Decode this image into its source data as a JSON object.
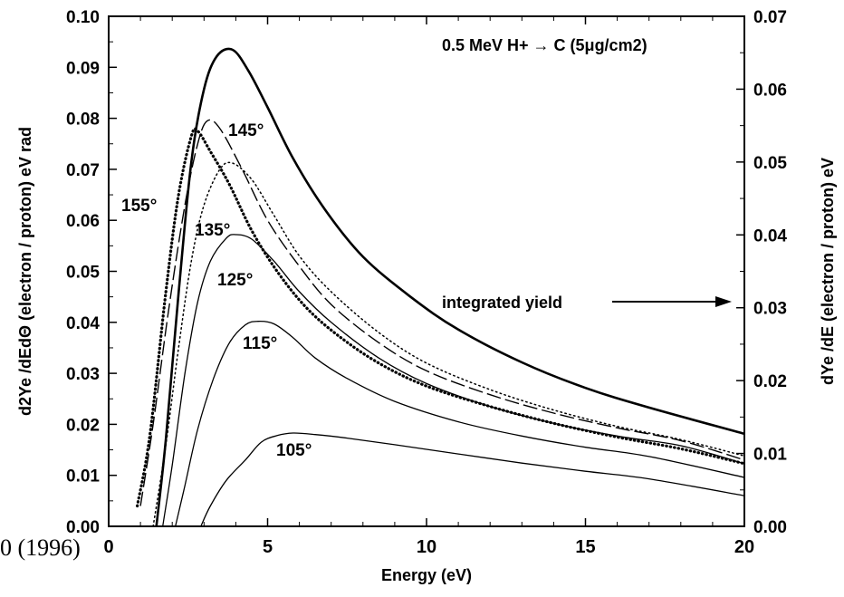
{
  "citation_fragment": "0 (1996)",
  "chart_data": {
    "type": "line",
    "title": "0.5 MeV H+ → C (5μg/cm2)",
    "xlabel": "Energy (eV)",
    "ylabel_left": "d2Ye /dEdΘ (electron / proton) eV rad",
    "ylabel_right": "dYe /dE (electron / proton) eV",
    "xlim": [
      0,
      20
    ],
    "ylim_left": [
      0,
      0.1
    ],
    "ylim_right": [
      0,
      0.07
    ],
    "x_ticks": [
      0,
      5,
      10,
      15,
      20
    ],
    "y_ticks_left": [
      "0.00",
      "0.01",
      "0.02",
      "0.03",
      "0.04",
      "0.05",
      "0.06",
      "0.07",
      "0.08",
      "0.09",
      "0.10"
    ],
    "y_ticks_right": [
      "0.00",
      "0.01",
      "0.02",
      "0.03",
      "0.04",
      "0.05",
      "0.06",
      "0.07"
    ],
    "annotation": {
      "text": "integrated yield",
      "arrow": "right",
      "target_axis": "right"
    },
    "grid": false,
    "series": [
      {
        "name": "105°",
        "axis": "left",
        "style": "solid-thin",
        "points": [
          [
            2.9,
            0
          ],
          [
            3.2,
            0.004
          ],
          [
            3.7,
            0.009
          ],
          [
            4.3,
            0.013
          ],
          [
            4.8,
            0.0165
          ],
          [
            5.3,
            0.0178
          ],
          [
            5.8,
            0.0183
          ],
          [
            6.5,
            0.018
          ],
          [
            7.5,
            0.0173
          ],
          [
            9.0,
            0.016
          ],
          [
            11.0,
            0.0142
          ],
          [
            13.0,
            0.0124
          ],
          [
            15.0,
            0.0108
          ],
          [
            17.0,
            0.0093
          ],
          [
            20.0,
            0.006
          ]
        ]
      },
      {
        "name": "115°",
        "axis": "left",
        "style": "solid-thin",
        "points": [
          [
            2.1,
            0
          ],
          [
            2.4,
            0.008
          ],
          [
            2.8,
            0.019
          ],
          [
            3.3,
            0.029
          ],
          [
            3.8,
            0.036
          ],
          [
            4.3,
            0.0395
          ],
          [
            4.7,
            0.0402
          ],
          [
            5.2,
            0.0397
          ],
          [
            5.8,
            0.037
          ],
          [
            6.5,
            0.033
          ],
          [
            7.5,
            0.029
          ],
          [
            9.0,
            0.0245
          ],
          [
            11.0,
            0.0205
          ],
          [
            13.0,
            0.0177
          ],
          [
            15.0,
            0.0155
          ],
          [
            17.0,
            0.0137
          ],
          [
            20.0,
            0.0096
          ]
        ]
      },
      {
        "name": "125°",
        "axis": "left",
        "style": "solid-thin",
        "points": [
          [
            1.7,
            0
          ],
          [
            2.0,
            0.012
          ],
          [
            2.4,
            0.03
          ],
          [
            2.8,
            0.044
          ],
          [
            3.2,
            0.052
          ],
          [
            3.7,
            0.0565
          ],
          [
            4.0,
            0.0572
          ],
          [
            4.5,
            0.0563
          ],
          [
            5.2,
            0.052
          ],
          [
            6.0,
            0.046
          ],
          [
            7.0,
            0.04
          ],
          [
            8.5,
            0.033
          ],
          [
            10.0,
            0.028
          ],
          [
            12.0,
            0.0235
          ],
          [
            14.0,
            0.0202
          ],
          [
            16.0,
            0.0177
          ],
          [
            18.0,
            0.0158
          ],
          [
            20.0,
            0.0123
          ]
        ]
      },
      {
        "name": "135°",
        "axis": "left",
        "style": "dotted",
        "points": [
          [
            1.4,
            0
          ],
          [
            1.8,
            0.016
          ],
          [
            2.2,
            0.035
          ],
          [
            2.6,
            0.052
          ],
          [
            3.0,
            0.063
          ],
          [
            3.5,
            0.07
          ],
          [
            3.9,
            0.0712
          ],
          [
            4.5,
            0.068
          ],
          [
            5.2,
            0.061
          ],
          [
            6.0,
            0.053
          ],
          [
            7.0,
            0.046
          ],
          [
            8.5,
            0.038
          ],
          [
            10.0,
            0.032
          ],
          [
            12.0,
            0.0268
          ],
          [
            14.0,
            0.0228
          ],
          [
            16.0,
            0.0196
          ],
          [
            18.0,
            0.017
          ],
          [
            20.0,
            0.0138
          ]
        ]
      },
      {
        "name": "145°",
        "axis": "left",
        "style": "dashed",
        "points": [
          [
            1.0,
            0.004
          ],
          [
            1.4,
            0.02
          ],
          [
            1.9,
            0.043
          ],
          [
            2.4,
            0.063
          ],
          [
            2.8,
            0.075
          ],
          [
            3.1,
            0.0795
          ],
          [
            3.5,
            0.078
          ],
          [
            4.2,
            0.07
          ],
          [
            5.0,
            0.06
          ],
          [
            6.0,
            0.051
          ],
          [
            7.0,
            0.0435
          ],
          [
            8.5,
            0.036
          ],
          [
            10.0,
            0.0305
          ],
          [
            12.0,
            0.0258
          ],
          [
            14.0,
            0.0222
          ],
          [
            16.0,
            0.0193
          ],
          [
            18.0,
            0.0168
          ],
          [
            20.0,
            0.013
          ]
        ]
      },
      {
        "name": "155°",
        "axis": "left",
        "style": "dots-heavy",
        "points": [
          [
            0.9,
            0.004
          ],
          [
            1.3,
            0.018
          ],
          [
            1.8,
            0.046
          ],
          [
            2.2,
            0.065
          ],
          [
            2.6,
            0.0765
          ],
          [
            2.8,
            0.0775
          ],
          [
            3.2,
            0.0735
          ],
          [
            3.8,
            0.067
          ],
          [
            4.5,
            0.058
          ],
          [
            5.3,
            0.05
          ],
          [
            6.2,
            0.043
          ],
          [
            7.2,
            0.0375
          ],
          [
            8.5,
            0.032
          ],
          [
            10.0,
            0.0275
          ],
          [
            12.0,
            0.0235
          ],
          [
            14.0,
            0.0202
          ],
          [
            16.0,
            0.0175
          ],
          [
            18.0,
            0.0152
          ],
          [
            20.0,
            0.0123
          ]
        ]
      },
      {
        "name": "integrated yield",
        "axis": "right",
        "style": "solid-thick",
        "points": [
          [
            1.5,
            0
          ],
          [
            1.8,
            0.012
          ],
          [
            2.2,
            0.032
          ],
          [
            2.6,
            0.05
          ],
          [
            3.0,
            0.06
          ],
          [
            3.4,
            0.0645
          ],
          [
            3.9,
            0.0654
          ],
          [
            4.4,
            0.0625
          ],
          [
            5.0,
            0.0575
          ],
          [
            5.8,
            0.0505
          ],
          [
            6.8,
            0.0435
          ],
          [
            8.0,
            0.037
          ],
          [
            9.5,
            0.0315
          ],
          [
            11.0,
            0.027
          ],
          [
            13.0,
            0.0225
          ],
          [
            15.0,
            0.019
          ],
          [
            17.0,
            0.0163
          ],
          [
            20.0,
            0.0127
          ]
        ]
      }
    ]
  }
}
